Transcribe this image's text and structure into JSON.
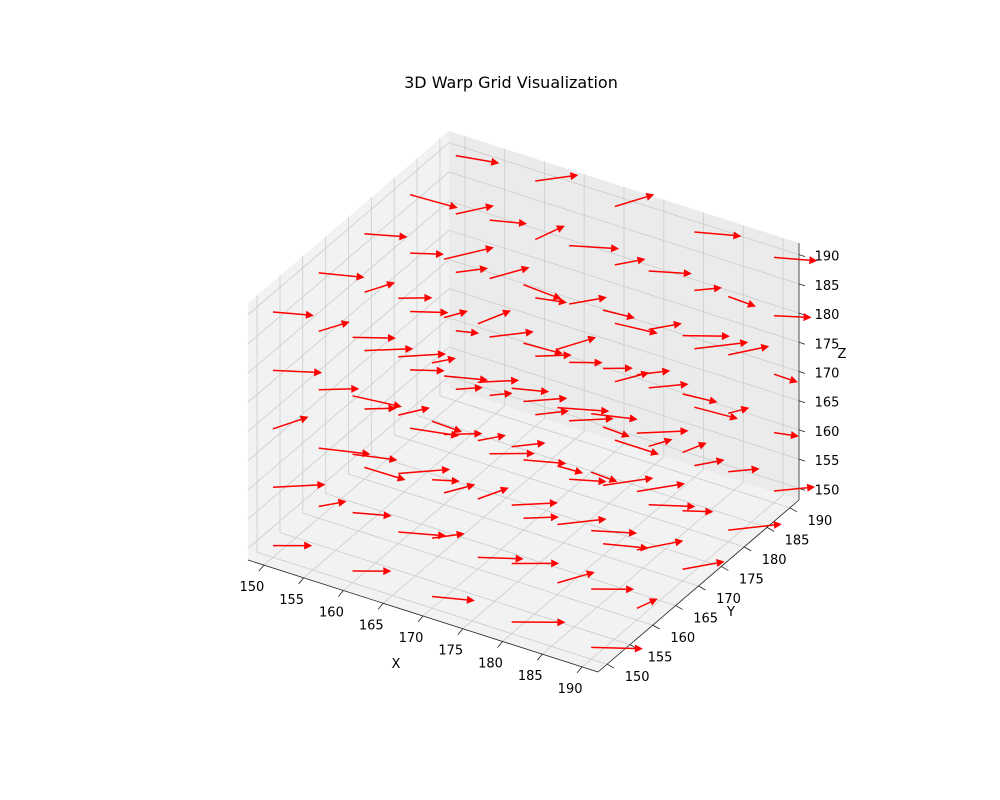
{
  "chart_data": {
    "type": "quiver3d",
    "title": "3D Warp Grid Visualization",
    "xlabel": "X",
    "ylabel": "Y",
    "zlabel": "Z",
    "xlim": [
      148,
      192
    ],
    "ylim": [
      148,
      192
    ],
    "zlim": [
      148,
      192
    ],
    "x_ticks": [
      "150",
      "155",
      "160",
      "165",
      "170",
      "175",
      "180",
      "185",
      "190"
    ],
    "y_ticks": [
      "150",
      "155",
      "160",
      "165",
      "170",
      "175",
      "180",
      "185",
      "190"
    ],
    "z_ticks": [
      "150",
      "155",
      "160",
      "165",
      "170",
      "175",
      "180",
      "185",
      "190"
    ],
    "grid": true,
    "arrow_color": "#ff0000",
    "grid_points": [
      150,
      160,
      170,
      180,
      190
    ],
    "vector_field": "approximate random warp displacement at each point of a 5x5x5 grid"
  }
}
